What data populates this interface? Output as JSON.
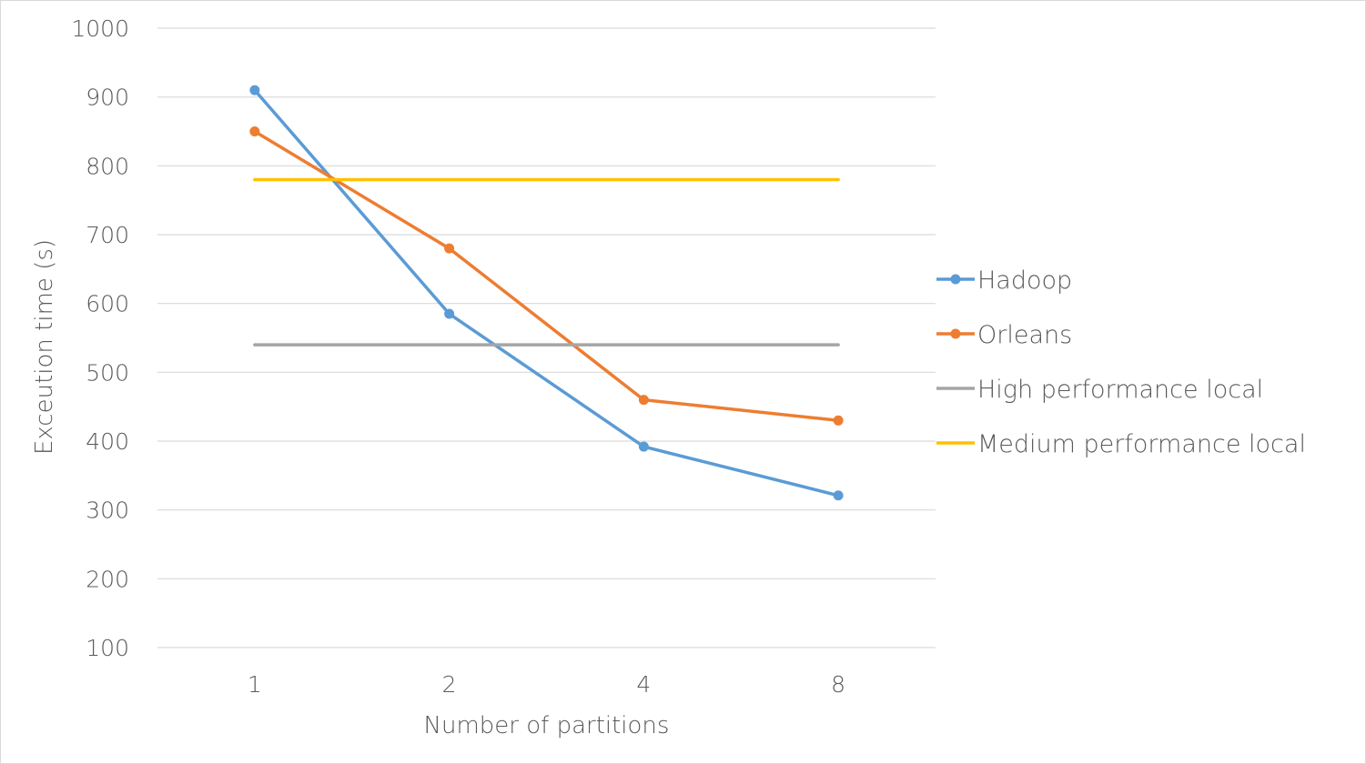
{
  "chart_data": {
    "type": "line",
    "xlabel": "Number of partitions",
    "ylabel": "Exceution time (s)",
    "categories": [
      "1",
      "2",
      "4",
      "8"
    ],
    "ylim": [
      100,
      1000
    ],
    "yticks": [
      100,
      200,
      300,
      400,
      500,
      600,
      700,
      800,
      900,
      1000
    ],
    "grid": true,
    "legend_position": "right",
    "series": [
      {
        "name": "Hadoop",
        "values": [
          910,
          585,
          392,
          321
        ],
        "color": "#5b9bd5",
        "markers": true
      },
      {
        "name": "Orleans",
        "values": [
          850,
          680,
          460,
          430
        ],
        "color": "#ed7d31",
        "markers": true
      },
      {
        "name": "High performance local",
        "values": [
          540,
          540,
          540,
          540
        ],
        "color": "#a5a5a5",
        "markers": false
      },
      {
        "name": "Medium performance local",
        "values": [
          780,
          780,
          780,
          780
        ],
        "color": "#ffc000",
        "markers": false
      }
    ]
  }
}
